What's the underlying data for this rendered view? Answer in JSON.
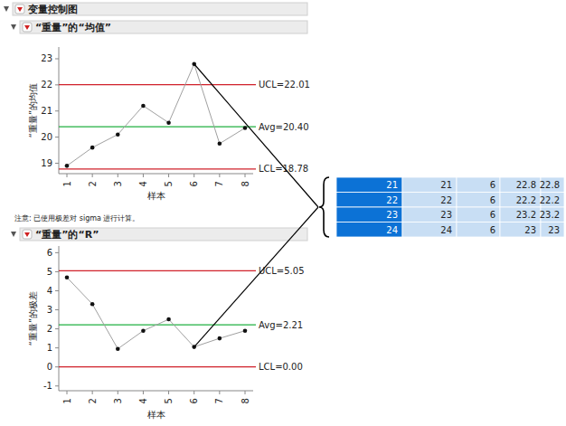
{
  "header": {
    "title": "变量控制图"
  },
  "chart_data": [
    {
      "type": "line",
      "title": "“重量”的“均值”",
      "x_label": "样本",
      "y_label": "“重量”的均值",
      "categories": [
        "1",
        "2",
        "3",
        "4",
        "5",
        "6",
        "7",
        "8"
      ],
      "values": [
        18.9,
        19.6,
        20.1,
        21.2,
        20.55,
        22.8,
        19.75,
        20.35
      ],
      "color": "#a0a0a0",
      "marker": "circle",
      "ylim": [
        18.6,
        23.45
      ],
      "yticks": [
        19,
        20,
        21,
        22,
        23
      ],
      "reference_lines": [
        {
          "value": 22.01,
          "label": "UCL=22.01",
          "color": "#d0202a"
        },
        {
          "value": 20.4,
          "label": "Avg=20.40",
          "color": "#20b040"
        },
        {
          "value": 18.78,
          "label": "LCL=18.78",
          "color": "#d0202a"
        }
      ]
    },
    {
      "type": "line",
      "title": "“重量”的“R”",
      "x_label": "样本",
      "y_label": "“重量”的极差",
      "categories": [
        "1",
        "2",
        "3",
        "4",
        "5",
        "6",
        "7",
        "8"
      ],
      "values": [
        4.7,
        3.3,
        0.95,
        1.9,
        2.5,
        1.05,
        1.5,
        1.9
      ],
      "color": "#a0a0a0",
      "marker": "circle",
      "ylim": [
        -1.25,
        6.35
      ],
      "yticks": [
        -1,
        0,
        1,
        2,
        3,
        4,
        5,
        6
      ],
      "reference_lines": [
        {
          "value": 5.05,
          "label": "UCL=5.05",
          "color": "#d0202a"
        },
        {
          "value": 2.21,
          "label": "Avg=2.21",
          "color": "#20b040"
        },
        {
          "value": 0,
          "label": "LCL=0.00",
          "color": "#d0202a"
        }
      ]
    }
  ],
  "note": "注意: 已使用极差对 sigma 进行计算。",
  "table": {
    "rows": [
      [
        21,
        21,
        6,
        22.8,
        22.8
      ],
      [
        22,
        22,
        6,
        22.2,
        22.2
      ],
      [
        23,
        23,
        6,
        23.2,
        23.2
      ],
      [
        24,
        24,
        6,
        23,
        23
      ]
    ]
  }
}
